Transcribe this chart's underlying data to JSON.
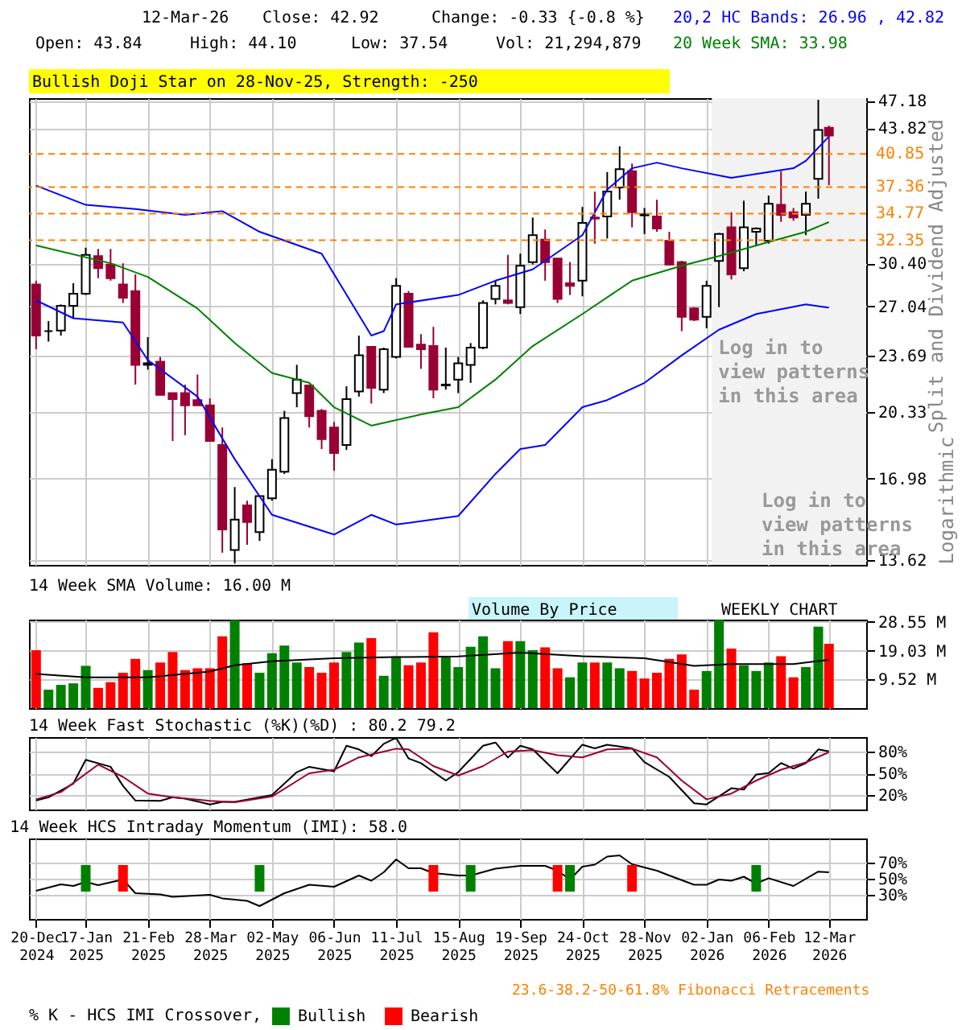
{
  "chart_data": [
    {
      "type": "candlestick",
      "ylabel": "Split and Dividend Adjusted",
      "log": true,
      "grid": true,
      "tick_labels": "y",
      "annotations": [
        "12-Mar-26",
        "Close: 42.92",
        "Change: -0.33 {-0.8 %}",
        "Open: 43.84",
        "High: 44.10",
        "Low: 37.54",
        "Vol: 21,294,879",
        "20,2 HC Bands: 26.96 , 42.82",
        "20 Week SMA: 33.98",
        "Bullish Doji Star on 28-Nov-25, Strength: -250",
        "Log in to view patterns in this area",
        "Logarithmic"
      ],
      "x": [
        "2024-12-20",
        "2024-12-27",
        "2025-01-03",
        "2025-01-10",
        "2025-01-17",
        "2025-01-24",
        "2025-01-31",
        "2025-02-07",
        "2025-02-14",
        "2025-02-21",
        "2025-02-28",
        "2025-03-07",
        "2025-03-14",
        "2025-03-21",
        "2025-03-28",
        "2025-04-04",
        "2025-04-11",
        "2025-04-18",
        "2025-04-25",
        "2025-05-02",
        "2025-05-09",
        "2025-05-16",
        "2025-05-23",
        "2025-05-30",
        "2025-06-06",
        "2025-06-13",
        "2025-06-20",
        "2025-06-27",
        "2025-07-04",
        "2025-07-11",
        "2025-07-18",
        "2025-07-25",
        "2025-08-01",
        "2025-08-08",
        "2025-08-15",
        "2025-08-22",
        "2025-08-29",
        "2025-09-05",
        "2025-09-12",
        "2025-09-19",
        "2025-09-26",
        "2025-10-03",
        "2025-10-10",
        "2025-10-17",
        "2025-10-24",
        "2025-10-31",
        "2025-11-07",
        "2025-11-14",
        "2025-11-21",
        "2025-11-28",
        "2025-12-05",
        "2025-12-12",
        "2025-12-19",
        "2025-12-26",
        "2026-01-02",
        "2026-01-09",
        "2026-01-16",
        "2026-01-23",
        "2026-01-30",
        "2026-02-06",
        "2026-02-13",
        "2026-02-20",
        "2026-02-27",
        "2026-03-06",
        "2026-03-12"
      ],
      "ohlc": [
        [
          28.7,
          29.0,
          24.1,
          25.0
        ],
        [
          25.3,
          26.0,
          24.6,
          25.3
        ],
        [
          25.35,
          27.2,
          25.0,
          27.1
        ],
        [
          27.1,
          28.8,
          26.2,
          28.0
        ],
        [
          28.0,
          31.7,
          27.9,
          31.1
        ],
        [
          31.0,
          31.6,
          29.2,
          30.0
        ],
        [
          30.3,
          31.6,
          29.0,
          29.2
        ],
        [
          28.7,
          30.4,
          27.3,
          27.7
        ],
        [
          28.2,
          29.5,
          21.9,
          23.1
        ],
        [
          23.1,
          24.9,
          22.8,
          23.2
        ],
        [
          23.3,
          23.6,
          21.3,
          21.3
        ],
        [
          21.4,
          21.4,
          18.8,
          21.05
        ],
        [
          21.4,
          21.9,
          19.1,
          20.7
        ],
        [
          21.0,
          22.5,
          20.7,
          20.7
        ],
        [
          20.7,
          21.1,
          18.8,
          18.8
        ],
        [
          18.6,
          19.5,
          13.9,
          14.8
        ],
        [
          14.0,
          16.6,
          13.5,
          15.2
        ],
        [
          15.8,
          16.0,
          14.2,
          15.1
        ],
        [
          14.7,
          16.2,
          14.35,
          16.2
        ],
        [
          16.1,
          17.9,
          16.0,
          17.4
        ],
        [
          17.3,
          20.4,
          17.2,
          20.0
        ],
        [
          21.4,
          23.1,
          20.6,
          22.2
        ],
        [
          21.85,
          21.9,
          19.5,
          20.1
        ],
        [
          20.4,
          20.5,
          18.4,
          18.9
        ],
        [
          19.5,
          19.8,
          17.35,
          18.2
        ],
        [
          18.6,
          21.8,
          18.35,
          21.05
        ],
        [
          21.5,
          25.0,
          21.2,
          23.7
        ],
        [
          24.25,
          24.3,
          20.8,
          21.7
        ],
        [
          21.6,
          24.2,
          21.4,
          24.1
        ],
        [
          23.6,
          29.2,
          23.5,
          28.6
        ],
        [
          28.0,
          28.2,
          24.2,
          24.25
        ],
        [
          24.4,
          25.1,
          22.85,
          24.1
        ],
        [
          24.3,
          25.6,
          21.1,
          21.6
        ],
        [
          21.85,
          24.2,
          21.6,
          21.9
        ],
        [
          22.2,
          23.6,
          21.4,
          23.2
        ],
        [
          23.1,
          24.5,
          22.0,
          24.2
        ],
        [
          24.2,
          27.5,
          24.1,
          27.3
        ],
        [
          27.6,
          29.0,
          27.2,
          28.6
        ],
        [
          27.5,
          31.1,
          27.2,
          27.3
        ],
        [
          27.0,
          31.2,
          26.5,
          30.2
        ],
        [
          30.5,
          34.4,
          30.3,
          32.8
        ],
        [
          32.4,
          33.3,
          29.0,
          30.5
        ],
        [
          30.8,
          30.8,
          27.3,
          27.6
        ],
        [
          28.8,
          30.5,
          27.9,
          28.6
        ],
        [
          29.0,
          35.4,
          27.8,
          33.9
        ],
        [
          34.4,
          36.9,
          32.05,
          34.3
        ],
        [
          34.5,
          38.9,
          32.5,
          36.9
        ],
        [
          37.3,
          41.7,
          36.1,
          39.2
        ],
        [
          39.0,
          39.8,
          33.5,
          34.9
        ],
        [
          34.6,
          35.3,
          32.9,
          34.7
        ],
        [
          34.5,
          36.1,
          33.1,
          33.4
        ],
        [
          32.3,
          33.1,
          30.2,
          30.3
        ],
        [
          30.5,
          30.6,
          25.3,
          26.3
        ],
        [
          26.9,
          27.0,
          26.0,
          26.1
        ],
        [
          26.3,
          29.0,
          25.5,
          28.6
        ],
        [
          30.6,
          33.0,
          27.0,
          32.9
        ],
        [
          33.5,
          34.9,
          29.1,
          29.5
        ],
        [
          30.0,
          36.0,
          29.75,
          33.5
        ],
        [
          33.1,
          33.5,
          31.9,
          33.4
        ],
        [
          32.3,
          36.5,
          32.05,
          35.7
        ],
        [
          35.6,
          39.0,
          34.0,
          34.65
        ],
        [
          34.9,
          35.3,
          34.1,
          34.4
        ],
        [
          34.65,
          36.9,
          32.8,
          35.7
        ],
        [
          38.2,
          47.3,
          36.2,
          43.6
        ],
        [
          43.84,
          44.1,
          37.54,
          42.92
        ]
      ],
      "series": [
        {
          "type": "line",
          "color": "#008000",
          "x": [
            "2024-12-20",
            "2025-01-31",
            "2025-02-21",
            "2025-03-21",
            "2025-04-11",
            "2025-05-02",
            "2025-05-23",
            "2025-06-06",
            "2025-06-27",
            "2025-07-25",
            "2025-08-15",
            "2025-09-05",
            "2025-09-26",
            "2025-10-24",
            "2025-11-21",
            "2025-12-19",
            "2026-01-09",
            "2026-02-06",
            "2026-02-27",
            "2026-03-12"
          ],
          "values": [
            31.9,
            30.4,
            29.3,
            26.9,
            24.5,
            22.6,
            22.0,
            20.6,
            19.6,
            20.2,
            20.6,
            22.2,
            24.3,
            26.5,
            29.0,
            30.2,
            31.0,
            32.2,
            33.1,
            33.98
          ]
        },
        {
          "type": "line",
          "color": "#0000ff",
          "x": [
            "2024-12-20",
            "2025-01-17",
            "2025-02-14",
            "2025-03-14",
            "2025-04-04",
            "2025-04-25",
            "2025-05-30",
            "2025-06-27",
            "2025-07-04",
            "2025-07-11",
            "2025-08-15",
            "2025-09-05",
            "2025-09-26",
            "2025-10-24",
            "2025-11-07",
            "2025-11-21",
            "2025-12-05",
            "2025-12-19",
            "2026-01-16",
            "2026-02-20",
            "2026-02-27",
            "2026-03-12"
          ],
          "values": [
            37.5,
            35.6,
            35.2,
            34.65,
            35.0,
            33.1,
            31.2,
            25.0,
            25.3,
            27.2,
            27.9,
            29.0,
            29.9,
            32.8,
            37.1,
            39.3,
            39.9,
            39.3,
            38.3,
            39.3,
            40.1,
            42.82
          ]
        },
        {
          "type": "line",
          "color": "#0000ff",
          "x": [
            "2024-12-20",
            "2025-01-10",
            "2025-02-07",
            "2025-02-21",
            "2025-03-21",
            "2025-04-11",
            "2025-05-02",
            "2025-06-06",
            "2025-06-27",
            "2025-07-11",
            "2025-08-15",
            "2025-09-05",
            "2025-09-19",
            "2025-10-03",
            "2025-10-24",
            "2025-11-07",
            "2025-11-28",
            "2025-12-19",
            "2026-01-09",
            "2026-01-30",
            "2026-02-27",
            "2026-03-12"
          ],
          "values": [
            27.5,
            26.2,
            25.9,
            23.4,
            21.2,
            17.9,
            15.4,
            14.6,
            15.4,
            15.0,
            15.35,
            17.2,
            18.4,
            18.6,
            20.6,
            21.0,
            22.0,
            23.7,
            25.4,
            26.5,
            27.2,
            26.96
          ]
        }
      ],
      "ref_lines": [
        {
          "axis": "y",
          "value": 40.85,
          "label": "40.85",
          "color": "#ff8000",
          "line_style": "dashed"
        },
        {
          "axis": "y",
          "value": 37.36,
          "label": "37.36",
          "color": "#ff8000",
          "line_style": "dashed"
        },
        {
          "axis": "y",
          "value": 34.77,
          "label": "34.77",
          "color": "#ff8000",
          "line_style": "dashed"
        },
        {
          "axis": "y",
          "value": 32.35,
          "label": "32.35",
          "color": "#ff8000",
          "line_style": "dashed"
        }
      ],
      "bands": [
        {
          "axis": "x",
          "from": "2026-01-05",
          "to": "2026-04-02",
          "label": "Log in to view patterns in this area",
          "color": "#f2f2f2"
        }
      ],
      "xlim": [
        "2024-12-16",
        "2026-04-02"
      ],
      "xticks": [
        {
          "value": "2024-12-20",
          "label": null
        },
        {
          "value": "2025-01-17",
          "label": null
        },
        {
          "value": "2025-02-21",
          "label": null
        },
        {
          "value": "2025-03-28",
          "label": null
        },
        {
          "value": "2025-05-02",
          "label": null
        },
        {
          "value": "2025-06-06",
          "label": null
        },
        {
          "value": "2025-07-11",
          "label": null
        },
        {
          "value": "2025-08-15",
          "label": null
        },
        {
          "value": "2025-09-19",
          "label": null
        },
        {
          "value": "2025-10-24",
          "label": null
        },
        {
          "value": "2025-11-28",
          "label": null
        },
        {
          "value": "2026-01-02",
          "label": null
        },
        {
          "value": "2026-02-06",
          "label": null
        },
        {
          "value": "2026-03-12",
          "label": null
        }
      ],
      "ylim": [
        13.45,
        47.5
      ],
      "yticks": [
        13.62,
        16.98,
        20.33,
        23.69,
        27.04,
        {
          "value": 30.4,
          "label": "30.40"
        },
        43.82,
        47.18
      ]
    },
    {
      "type": "bar",
      "title": "14 Week SMA Volume: 16.00 M",
      "grid": true,
      "tick_labels": "y",
      "annotations": [
        "Volume By Price",
        "WEEKLY CHART"
      ],
      "x": [
        "2024-12-20",
        "2024-12-27",
        "2025-01-03",
        "2025-01-10",
        "2025-01-17",
        "2025-01-24",
        "2025-01-31",
        "2025-02-07",
        "2025-02-14",
        "2025-02-21",
        "2025-02-28",
        "2025-03-07",
        "2025-03-14",
        "2025-03-21",
        "2025-03-28",
        "2025-04-04",
        "2025-04-11",
        "2025-04-18",
        "2025-04-25",
        "2025-05-02",
        "2025-05-09",
        "2025-05-16",
        "2025-05-23",
        "2025-05-30",
        "2025-06-06",
        "2025-06-13",
        "2025-06-20",
        "2025-06-27",
        "2025-07-04",
        "2025-07-11",
        "2025-07-18",
        "2025-07-25",
        "2025-08-01",
        "2025-08-08",
        "2025-08-15",
        "2025-08-22",
        "2025-08-29",
        "2025-09-05",
        "2025-09-12",
        "2025-09-19",
        "2025-09-26",
        "2025-10-03",
        "2025-10-10",
        "2025-10-17",
        "2025-10-24",
        "2025-10-31",
        "2025-11-07",
        "2025-11-14",
        "2025-11-21",
        "2025-11-28",
        "2025-12-05",
        "2025-12-12",
        "2025-12-19",
        "2025-12-26",
        "2026-01-02",
        "2026-01-09",
        "2026-01-16",
        "2026-01-23",
        "2026-01-30",
        "2026-02-06",
        "2026-02-13",
        "2026-02-20",
        "2026-02-27",
        "2026-03-06",
        "2026-03-12"
      ],
      "series": [
        {
          "type": "bar",
          "colors": [
            "#ff0000",
            "#008000",
            "#008000",
            "#008000",
            "#008000",
            "#ff0000",
            "#ff0000",
            "#ff0000",
            "#ff0000",
            "#008000",
            "#ff0000",
            "#ff0000",
            "#ff0000",
            "#ff0000",
            "#ff0000",
            "#ff0000",
            "#008000",
            "#ff0000",
            "#008000",
            "#008000",
            "#008000",
            "#008000",
            "#ff0000",
            "#ff0000",
            "#ff0000",
            "#008000",
            "#008000",
            "#ff0000",
            "#008000",
            "#008000",
            "#ff0000",
            "#ff0000",
            "#ff0000",
            "#008000",
            "#008000",
            "#008000",
            "#008000",
            "#008000",
            "#ff0000",
            "#008000",
            "#008000",
            "#ff0000",
            "#ff0000",
            "#008000",
            "#008000",
            "#ff0000",
            "#008000",
            "#008000",
            "#ff0000",
            "#ff0000",
            "#ff0000",
            "#ff0000",
            "#ff0000",
            "#ff0000",
            "#008000",
            "#008000",
            "#ff0000",
            "#008000",
            "#008000",
            "#008000",
            "#ff0000",
            "#ff0000",
            "#008000",
            "#008000",
            "#ff0000"
          ],
          "values": [
            19.2,
            6.1,
            7.7,
            8.2,
            14.0,
            6.7,
            8.6,
            11.7,
            16.3,
            12.6,
            15.1,
            18.6,
            12.6,
            13.2,
            13.2,
            23.8,
            29.2,
            14.9,
            11.7,
            18.2,
            20.7,
            15.1,
            13.6,
            11.7,
            15.1,
            18.6,
            21.7,
            23.2,
            10.7,
            17.1,
            14.2,
            15.1,
            25.1,
            16.9,
            13.6,
            20.3,
            23.8,
            13.2,
            22.2,
            22.2,
            19.2,
            20.1,
            13.2,
            10.2,
            15.1,
            15.1,
            15.1,
            13.2,
            12.3,
            9.8,
            11.7,
            16.3,
            17.8,
            6.1,
            12.3,
            29.2,
            19.7,
            14.2,
            12.3,
            15.1,
            17.2,
            10.2,
            13.6,
            27.0,
            21.29
          ]
        },
        {
          "type": "line",
          "color": "#000000",
          "x": [
            "2024-12-20",
            "2025-01-17",
            "2025-02-21",
            "2025-03-28",
            "2025-04-11",
            "2025-05-02",
            "2025-06-06",
            "2025-07-11",
            "2025-08-15",
            "2025-09-19",
            "2025-10-24",
            "2025-11-28",
            "2025-12-26",
            "2026-01-16",
            "2026-02-20",
            "2026-03-12"
          ],
          "values": [
            11.3,
            10.2,
            10.2,
            12.1,
            14.2,
            15.5,
            16.5,
            16.9,
            17.1,
            18.4,
            17.2,
            16.5,
            14.0,
            14.6,
            14.6,
            16.0
          ]
        }
      ],
      "xlim": [
        "2024-12-16",
        "2026-04-02"
      ],
      "xticks": [
        {
          "value": "2024-12-20",
          "label": null
        },
        {
          "value": "2025-01-17",
          "label": null
        },
        {
          "value": "2025-02-21",
          "label": null
        },
        {
          "value": "2025-03-28",
          "label": null
        },
        {
          "value": "2025-05-02",
          "label": null
        },
        {
          "value": "2025-06-06",
          "label": null
        },
        {
          "value": "2025-07-11",
          "label": null
        },
        {
          "value": "2025-08-15",
          "label": null
        },
        {
          "value": "2025-09-19",
          "label": null
        },
        {
          "value": "2025-10-24",
          "label": null
        },
        {
          "value": "2025-11-28",
          "label": null
        },
        {
          "value": "2026-01-02",
          "label": null
        },
        {
          "value": "2026-02-06",
          "label": null
        },
        {
          "value": "2026-03-12",
          "label": null
        }
      ],
      "ylim": [
        0,
        29.3
      ],
      "yticks": [
        {
          "value": 9.52,
          "label": "9.52 M"
        },
        {
          "value": 19.03,
          "label": "19.03 M"
        },
        {
          "value": 28.55,
          "label": "28.55 M"
        }
      ]
    },
    {
      "type": "line",
      "title": "14 Week Fast Stochastic (%K)(%D) : 80.2 79.2",
      "grid": true,
      "tick_labels": "y",
      "series": [
        {
          "type": "line",
          "color": "#000000",
          "x": [
            "2024-12-20",
            "2024-12-27",
            "2025-01-10",
            "2025-01-17",
            "2025-01-31",
            "2025-02-07",
            "2025-02-14",
            "2025-02-28",
            "2025-03-07",
            "2025-03-14",
            "2025-03-28",
            "2025-04-04",
            "2025-04-11",
            "2025-05-02",
            "2025-05-16",
            "2025-05-23",
            "2025-06-06",
            "2025-06-13",
            "2025-06-20",
            "2025-06-27",
            "2025-07-04",
            "2025-07-11",
            "2025-07-18",
            "2025-07-25",
            "2025-08-08",
            "2025-08-15",
            "2025-08-29",
            "2025-09-05",
            "2025-09-12",
            "2025-09-19",
            "2025-09-26",
            "2025-10-10",
            "2025-10-24",
            "2025-10-31",
            "2025-11-07",
            "2025-11-21",
            "2025-11-28",
            "2025-12-12",
            "2025-12-26",
            "2026-01-02",
            "2026-01-16",
            "2026-01-23",
            "2026-01-30",
            "2026-02-06",
            "2026-02-13",
            "2026-02-20",
            "2026-02-27",
            "2026-03-06",
            "2026-03-12"
          ],
          "values": [
            12.4,
            16.8,
            35.8,
            68.6,
            59,
            32.6,
            12.4,
            12,
            17,
            15,
            7,
            10.5,
            10.5,
            20,
            51.6,
            59,
            52.8,
            88,
            83,
            73.7,
            90.7,
            99,
            70.5,
            64,
            40,
            51.6,
            88,
            92.6,
            71.8,
            88,
            83,
            50,
            89.5,
            84.4,
            89.5,
            84.4,
            65.5,
            45,
            8.6,
            7,
            29.4,
            27.5,
            48.4,
            50.3,
            64.2,
            56.6,
            64.2,
            83,
            80.2
          ]
        },
        {
          "type": "line",
          "color": "#990033",
          "x": [
            "2024-12-20",
            "2025-01-03",
            "2025-01-24",
            "2025-02-07",
            "2025-02-21",
            "2025-03-07",
            "2025-03-28",
            "2025-04-11",
            "2025-05-02",
            "2025-05-23",
            "2025-06-06",
            "2025-06-20",
            "2025-07-04",
            "2025-07-11",
            "2025-07-18",
            "2025-08-01",
            "2025-08-15",
            "2025-08-29",
            "2025-09-12",
            "2025-09-26",
            "2025-10-10",
            "2025-10-24",
            "2025-11-07",
            "2025-11-21",
            "2025-12-05",
            "2025-12-19",
            "2026-01-02",
            "2026-01-16",
            "2026-01-30",
            "2026-02-13",
            "2026-02-27",
            "2026-03-12"
          ],
          "values": [
            14,
            24,
            62,
            45,
            22,
            17,
            12,
            10,
            18,
            50,
            55,
            72,
            80,
            84,
            83,
            60,
            47,
            60,
            80,
            82,
            75,
            72,
            83,
            84,
            72,
            40,
            14,
            22,
            40,
            55,
            65,
            79.2
          ]
        }
      ],
      "xlim": [
        "2024-12-16",
        "2026-04-02"
      ],
      "xticks": [
        {
          "value": "2024-12-20",
          "label": null
        },
        {
          "value": "2025-01-17",
          "label": null
        },
        {
          "value": "2025-02-21",
          "label": null
        },
        {
          "value": "2025-03-28",
          "label": null
        },
        {
          "value": "2025-05-02",
          "label": null
        },
        {
          "value": "2025-06-06",
          "label": null
        },
        {
          "value": "2025-07-11",
          "label": null
        },
        {
          "value": "2025-08-15",
          "label": null
        },
        {
          "value": "2025-09-19",
          "label": null
        },
        {
          "value": "2025-10-24",
          "label": null
        },
        {
          "value": "2025-11-28",
          "label": null
        },
        {
          "value": "2026-01-02",
          "label": null
        },
        {
          "value": "2026-02-06",
          "label": null
        },
        {
          "value": "2026-03-12",
          "label": null
        }
      ],
      "ylim": [
        0,
        100
      ],
      "yticks": [
        {
          "value": 20,
          "label": "20%"
        },
        {
          "value": 50,
          "label": "50%"
        },
        {
          "value": 80,
          "label": "80%"
        }
      ]
    },
    {
      "type": "line",
      "title": "14 Week HCS Intraday Momentum (IMI): 58.0",
      "grid": true,
      "legend": "bottom",
      "legend_title": "% K - HCS IMI Crossover,",
      "annotations": [
        "23.6-38.2-50-61.8% Fibonacci Retracements"
      ],
      "series": [
        {
          "type": "line",
          "color": "#000000",
          "x": [
            "2024-12-20",
            "2025-01-03",
            "2025-01-10",
            "2025-01-17",
            "2025-01-24",
            "2025-02-07",
            "2025-02-14",
            "2025-02-28",
            "2025-03-07",
            "2025-03-28",
            "2025-04-04",
            "2025-04-18",
            "2025-04-25",
            "2025-05-09",
            "2025-05-23",
            "2025-06-06",
            "2025-06-20",
            "2025-06-27",
            "2025-07-04",
            "2025-07-11",
            "2025-07-18",
            "2025-07-25",
            "2025-08-01",
            "2025-08-15",
            "2025-08-22",
            "2025-09-05",
            "2025-09-19",
            "2025-10-03",
            "2025-10-10",
            "2025-10-17",
            "2025-10-24",
            "2025-10-31",
            "2025-11-07",
            "2025-11-14",
            "2025-11-21",
            "2025-12-05",
            "2025-12-12",
            "2025-12-26",
            "2026-01-02",
            "2026-01-09",
            "2026-01-16",
            "2026-01-23",
            "2026-01-30",
            "2026-02-06",
            "2026-02-20",
            "2026-03-06",
            "2026-03-12"
          ],
          "values": [
            35,
            43,
            41,
            46,
            42,
            49,
            32,
            30.6,
            27.5,
            30,
            25.6,
            22.5,
            16,
            32,
            42.5,
            40,
            54,
            47.5,
            58,
            74,
            63,
            63,
            57,
            54,
            54,
            62.5,
            66,
            66,
            60,
            49,
            65,
            67.5,
            77.5,
            79,
            68,
            60,
            54,
            42.5,
            42.5,
            49,
            47.5,
            52.5,
            44,
            50.6,
            41,
            58.8,
            58
          ]
        },
        {
          "type": "bar",
          "name": "Bullish",
          "color": "#008000",
          "x": [
            "2025-01-17",
            "2025-04-25",
            "2025-08-22",
            "2025-10-17",
            "2026-01-30"
          ],
          "base": [
            34,
            34,
            34,
            34,
            34
          ],
          "values": [
            33,
            33,
            33,
            33,
            33
          ]
        },
        {
          "type": "bar",
          "name": "Bearish",
          "color": "#ff0000",
          "x": [
            "2025-02-07",
            "2025-08-01",
            "2025-10-10",
            "2025-11-21"
          ],
          "base": [
            34,
            34,
            34,
            34
          ],
          "values": [
            33,
            33,
            33,
            33
          ]
        }
      ],
      "xlim": [
        "2024-12-16",
        "2026-04-02"
      ],
      "xticks": [
        {
          "value": "2024-12-20",
          "label": "20-Dec\n2024"
        },
        {
          "value": "2025-01-17",
          "label": "17-Jan\n2025"
        },
        {
          "value": "2025-02-21",
          "label": "21-Feb\n2025"
        },
        {
          "value": "2025-03-28",
          "label": "28-Mar\n2025"
        },
        {
          "value": "2025-05-02",
          "label": "02-May\n2025"
        },
        {
          "value": "2025-06-06",
          "label": "06-Jun\n2025"
        },
        {
          "value": "2025-07-11",
          "label": "11-Jul\n2025"
        },
        {
          "value": "2025-08-15",
          "label": "15-Aug\n2025"
        },
        {
          "value": "2025-09-19",
          "label": "19-Sep\n2025"
        },
        {
          "value": "2025-10-24",
          "label": "24-Oct\n2025"
        },
        {
          "value": "2025-11-28",
          "label": "28-Nov\n2025"
        },
        {
          "value": "2026-01-02",
          "label": "02-Jan\n2026"
        },
        {
          "value": "2026-02-06",
          "label": "06-Feb\n2026"
        },
        {
          "value": "2026-03-12",
          "label": "12-Mar\n2026"
        }
      ],
      "ylim": [
        0,
        100
      ],
      "yticks": [
        {
          "value": 30,
          "label": "30%"
        },
        {
          "value": 50,
          "label": "50%"
        },
        {
          "value": 70,
          "label": "70%"
        }
      ]
    }
  ]
}
